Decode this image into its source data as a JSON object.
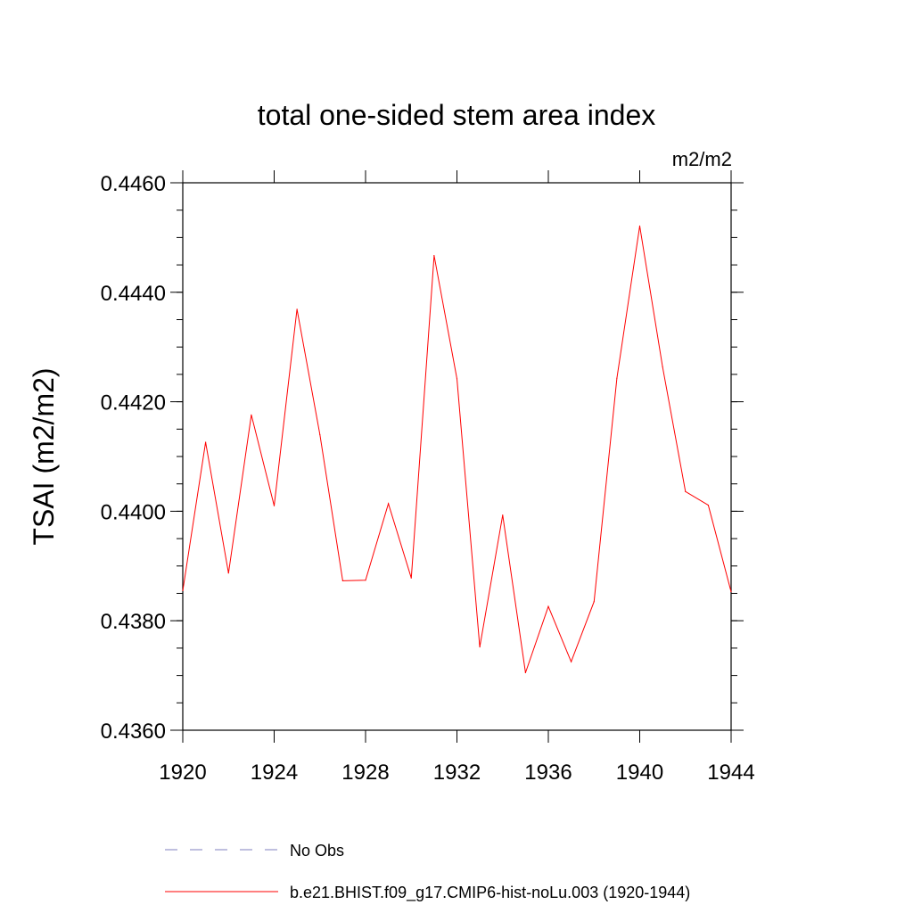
{
  "chart_data": {
    "type": "line",
    "title": "total one-sided stem area index",
    "units_label": "m2/m2",
    "ylabel": "TSAI  (m2/m2)",
    "xlabel": "",
    "xlim": [
      1920,
      1944
    ],
    "ylim": [
      0.436,
      0.446
    ],
    "xticks": [
      1920,
      1924,
      1928,
      1932,
      1936,
      1940,
      1944
    ],
    "yticks": [
      "0.4360",
      "0.4380",
      "0.4400",
      "0.4420",
      "0.4440",
      "0.4460"
    ],
    "series": [
      {
        "name": "b.e21.BHIST.f09_g17.CMIP6-hist-noLu.003 (1920-1944)",
        "color": "#ff0000",
        "x": [
          1920,
          1921,
          1922,
          1923,
          1924,
          1925,
          1926,
          1927,
          1928,
          1929,
          1930,
          1931,
          1932,
          1933,
          1934,
          1935,
          1936,
          1937,
          1938,
          1939,
          1940,
          1941,
          1942,
          1943,
          1944
        ],
        "values": [
          0.43855,
          0.44126,
          0.43887,
          0.44176,
          0.4401,
          0.44369,
          0.4414,
          0.43873,
          0.43874,
          0.44014,
          0.43878,
          0.44467,
          0.44242,
          0.43752,
          0.43993,
          0.43705,
          0.43826,
          0.43725,
          0.43835,
          0.44243,
          0.44521,
          0.44264,
          0.44036,
          0.44011,
          0.43853
        ]
      }
    ],
    "legend": [
      {
        "label": "No Obs",
        "color": "#7f7fbf",
        "style": "dashed"
      },
      {
        "label": "b.e21.BHIST.f09_g17.CMIP6-hist-noLu.003 (1920-1944)",
        "color": "#ff0000",
        "style": "solid"
      }
    ]
  }
}
